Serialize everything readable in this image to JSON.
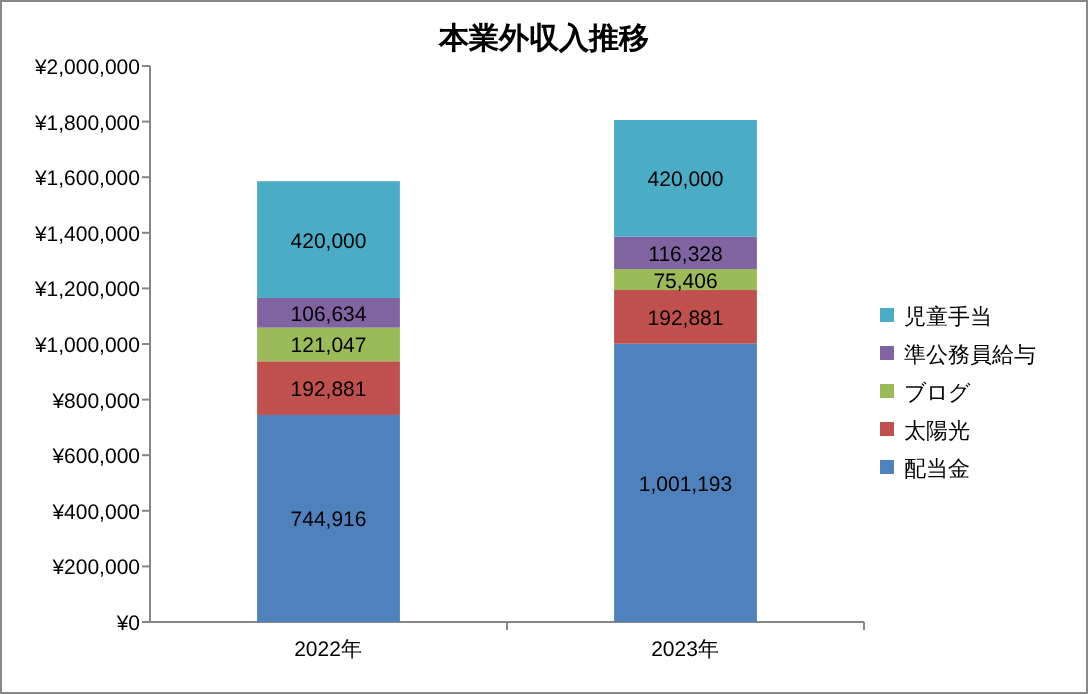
{
  "chart_data": {
    "type": "bar",
    "title": "本業外収入推移",
    "stacked": true,
    "legend": "right",
    "categories": [
      "2022年",
      "2023年"
    ],
    "ylim": [
      0,
      2000000
    ],
    "yticks": [
      {
        "value": 0,
        "label": "¥0"
      },
      {
        "value": 200000,
        "label": "¥200,000"
      },
      {
        "value": 400000,
        "label": "¥400,000"
      },
      {
        "value": 600000,
        "label": "¥600,000"
      },
      {
        "value": 800000,
        "label": "¥800,000"
      },
      {
        "value": 1000000,
        "label": "¥1,000,000"
      },
      {
        "value": 1200000,
        "label": "¥1,200,000"
      },
      {
        "value": 1400000,
        "label": "¥1,400,000"
      },
      {
        "value": 1600000,
        "label": "¥1,600,000"
      },
      {
        "value": 1800000,
        "label": "¥1,800,000"
      },
      {
        "value": 2000000,
        "label": "¥2,000,000"
      }
    ],
    "series": [
      {
        "name": "配当金",
        "color": "#4f81bd",
        "values": [
          744916,
          1001193
        ],
        "value_labels": [
          "744,916",
          "1,001,193"
        ]
      },
      {
        "name": "太陽光",
        "color": "#c0504d",
        "values": [
          192881,
          192881
        ],
        "value_labels": [
          "192,881",
          "192,881"
        ]
      },
      {
        "name": "ブログ",
        "color": "#9bbb59",
        "values": [
          121047,
          75406
        ],
        "value_labels": [
          "121,047",
          "75,406"
        ]
      },
      {
        "name": "準公務員給与",
        "color": "#8064a2",
        "values": [
          106634,
          116328
        ],
        "value_labels": [
          "106,634",
          "116,328"
        ]
      },
      {
        "name": "児童手当",
        "color": "#4bacc6",
        "values": [
          420000,
          420000
        ],
        "value_labels": [
          "420,000",
          "420,000"
        ]
      }
    ]
  }
}
